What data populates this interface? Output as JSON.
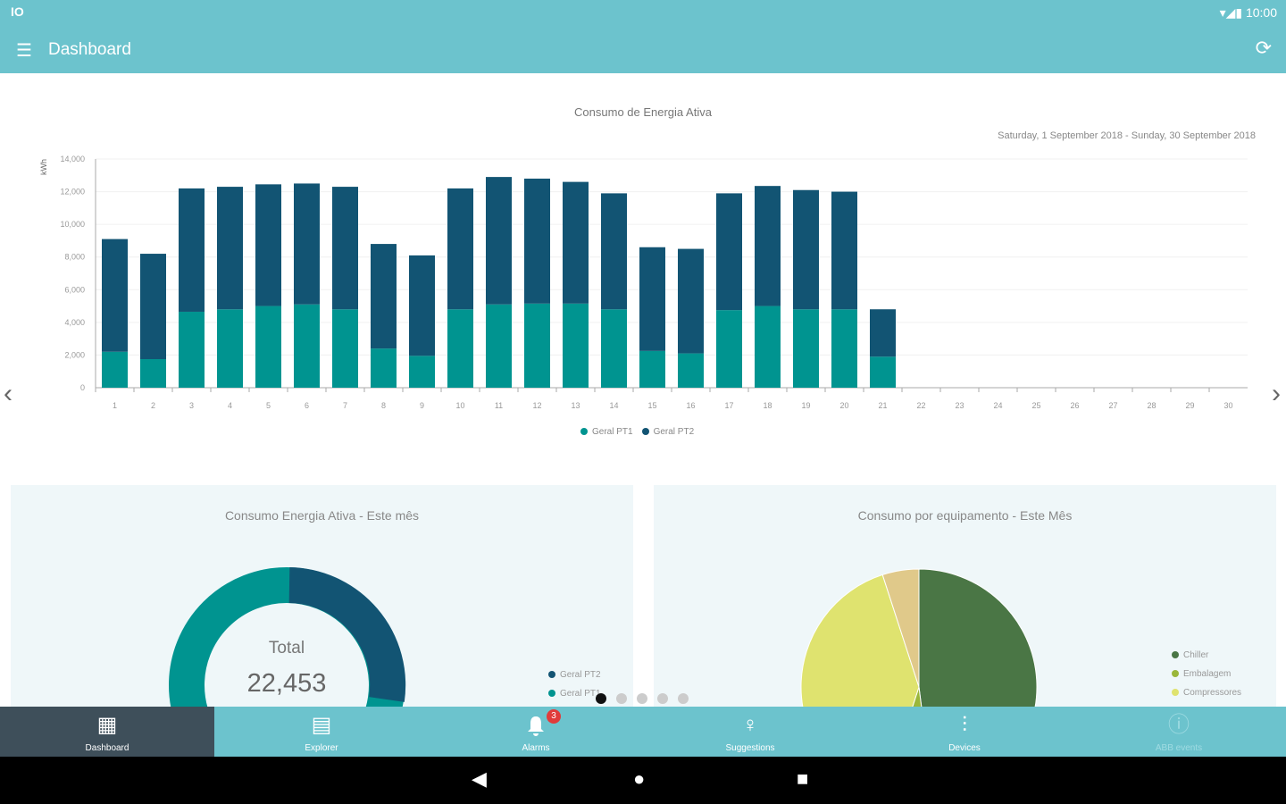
{
  "status": {
    "left_icon": "IO",
    "time": "10:00"
  },
  "appbar": {
    "title": "Dashboard",
    "menu_icon": "menu-icon",
    "refresh_icon": "refresh-icon"
  },
  "chart_data": [
    {
      "type": "bar",
      "stacked": true,
      "title": "Consumo de Energia Ativa",
      "subtitle": "Saturday, 1 September 2018 - Sunday, 30 September 2018",
      "ylabel": "kWh",
      "ylim": [
        0,
        14000
      ],
      "yticks": [
        "0",
        "2,000",
        "4,000",
        "6,000",
        "8,000",
        "10,000",
        "12,000",
        "14,000"
      ],
      "categories": [
        "1",
        "2",
        "3",
        "4",
        "5",
        "6",
        "7",
        "8",
        "9",
        "10",
        "11",
        "12",
        "13",
        "14",
        "15",
        "16",
        "17",
        "18",
        "19",
        "20",
        "21",
        "22",
        "23",
        "24",
        "25",
        "26",
        "27",
        "28",
        "29",
        "30"
      ],
      "series": [
        {
          "name": "Geral PT1",
          "color": "#009490",
          "values": [
            2200,
            1750,
            4650,
            4800,
            5000,
            5100,
            4800,
            2400,
            1950,
            4800,
            5100,
            5150,
            5150,
            4800,
            2250,
            2100,
            4750,
            5000,
            4800,
            4800,
            1900,
            0,
            0,
            0,
            0,
            0,
            0,
            0,
            0,
            0
          ]
        },
        {
          "name": "Geral PT2",
          "color": "#125473",
          "values": [
            6900,
            6450,
            7550,
            7500,
            7450,
            7400,
            7500,
            6400,
            6150,
            7400,
            7800,
            7650,
            7450,
            7100,
            6350,
            6400,
            7150,
            7350,
            7300,
            7200,
            2900,
            0,
            0,
            0,
            0,
            0,
            0,
            0,
            0,
            0
          ]
        }
      ],
      "legend": "bottom"
    },
    {
      "type": "pie",
      "donut": true,
      "title": "Consumo Energia Ativa - Este mês",
      "center_label": "Total",
      "center_value": "22,453",
      "labels": [
        "Geral PT2",
        "Geral PT1"
      ],
      "values": [
        50,
        50
      ],
      "colors": [
        "#125473",
        "#009490"
      ]
    },
    {
      "type": "pie",
      "title": "Consumo por equipamento - Este Mês",
      "labels": [
        "Chiller",
        "Embalagem",
        "Compressores",
        ""
      ],
      "values": [
        48,
        7,
        40,
        5
      ],
      "colors": [
        "#4a7645",
        "#9ab73a",
        "#dfe36f",
        "#e0c98a"
      ]
    }
  ],
  "bottom_nav": [
    {
      "label": "Dashboard",
      "icon": "dashboard-icon"
    },
    {
      "label": "Explorer",
      "icon": "explorer-icon"
    },
    {
      "label": "Alarms",
      "icon": "bell-icon",
      "badge": "3"
    },
    {
      "label": "Suggestions",
      "icon": "lightbulb-icon"
    },
    {
      "label": "Devices",
      "icon": "sliders-icon"
    },
    {
      "label": "ABB events",
      "icon": "bolt-icon"
    }
  ]
}
